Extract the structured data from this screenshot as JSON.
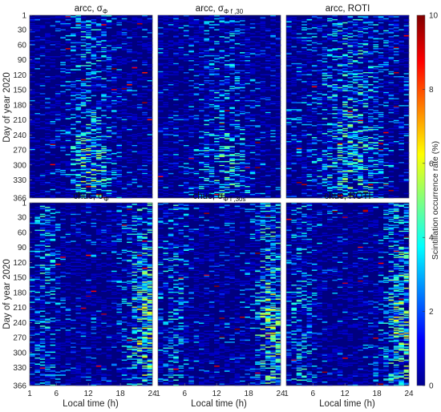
{
  "chart_data": {
    "type": "heatmap",
    "colorbar": {
      "label": "Scintillation occurrence rate (%)",
      "ticks": [
        "0",
        "2",
        "4",
        "6",
        "8",
        "10"
      ],
      "range": [
        0,
        10
      ],
      "colormap": "jet"
    },
    "xlabel": "Local time (h)",
    "ylabel": "Day of year 2020",
    "xticks": [
      "1",
      "6",
      "12",
      "18",
      "24"
    ],
    "yticks": [
      "1",
      "30",
      "60",
      "90",
      "120",
      "150",
      "180",
      "210",
      "240",
      "270",
      "300",
      "330",
      "366"
    ],
    "xrange": [
      1,
      24
    ],
    "yrange": [
      1,
      366
    ],
    "panels": [
      {
        "station": "arcc",
        "metric": "σ",
        "metric_sub": "Φ",
        "pattern": "arcc-midday"
      },
      {
        "station": "arcc",
        "metric": "σ",
        "metric_sub": "Φ f ,30",
        "pattern": "arcc-midday-weak"
      },
      {
        "station": "arcc",
        "metric": ", ROTI",
        "metric_sub": "",
        "pattern": "arcc-broad"
      },
      {
        "station": "chuc",
        "metric": "σ",
        "metric_sub": "Φ",
        "pattern": "chuc-evening"
      },
      {
        "station": "chuc",
        "metric": "σ",
        "metric_sub": "Φ f ,30s",
        "pattern": "chuc-evening"
      },
      {
        "station": "chuc",
        "metric": ", ROTI",
        "metric_sub": "",
        "pattern": "chuc-evening"
      }
    ]
  }
}
